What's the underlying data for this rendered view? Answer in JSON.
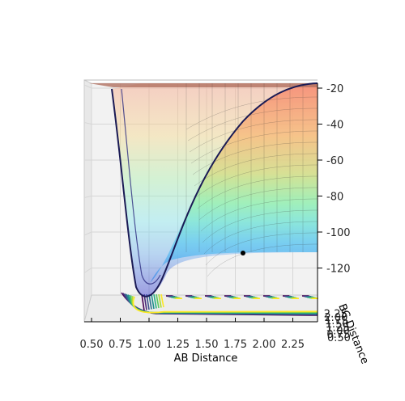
{
  "chart_data": {
    "type": "surface3d",
    "xlabel": "AB Distance",
    "ylabel": "BC Distance",
    "zlabel": "",
    "x_ticks": [
      "0.50",
      "0.75",
      "1.00",
      "1.25",
      "1.50",
      "1.75",
      "2.00",
      "2.25"
    ],
    "y_ticks": [
      "0.50",
      "0.75",
      "1.00",
      "1.25",
      "1.50",
      "1.75",
      "2.00",
      "2.25"
    ],
    "z_ticks": [
      "-20",
      "-40",
      "-60",
      "-80",
      "-100",
      "-120"
    ],
    "xlim": [
      0.5,
      2.4
    ],
    "zlim": [
      -130,
      -20
    ],
    "surface": "LEPS potential energy surface (colormap jet, semi-transparent) with contour projection (viridis) on floor",
    "colormap_surface": "jet",
    "colormap_contours": "viridis",
    "marker_point": {
      "x": 1.8,
      "z": -112,
      "color": "#000000"
    },
    "grid": true
  }
}
